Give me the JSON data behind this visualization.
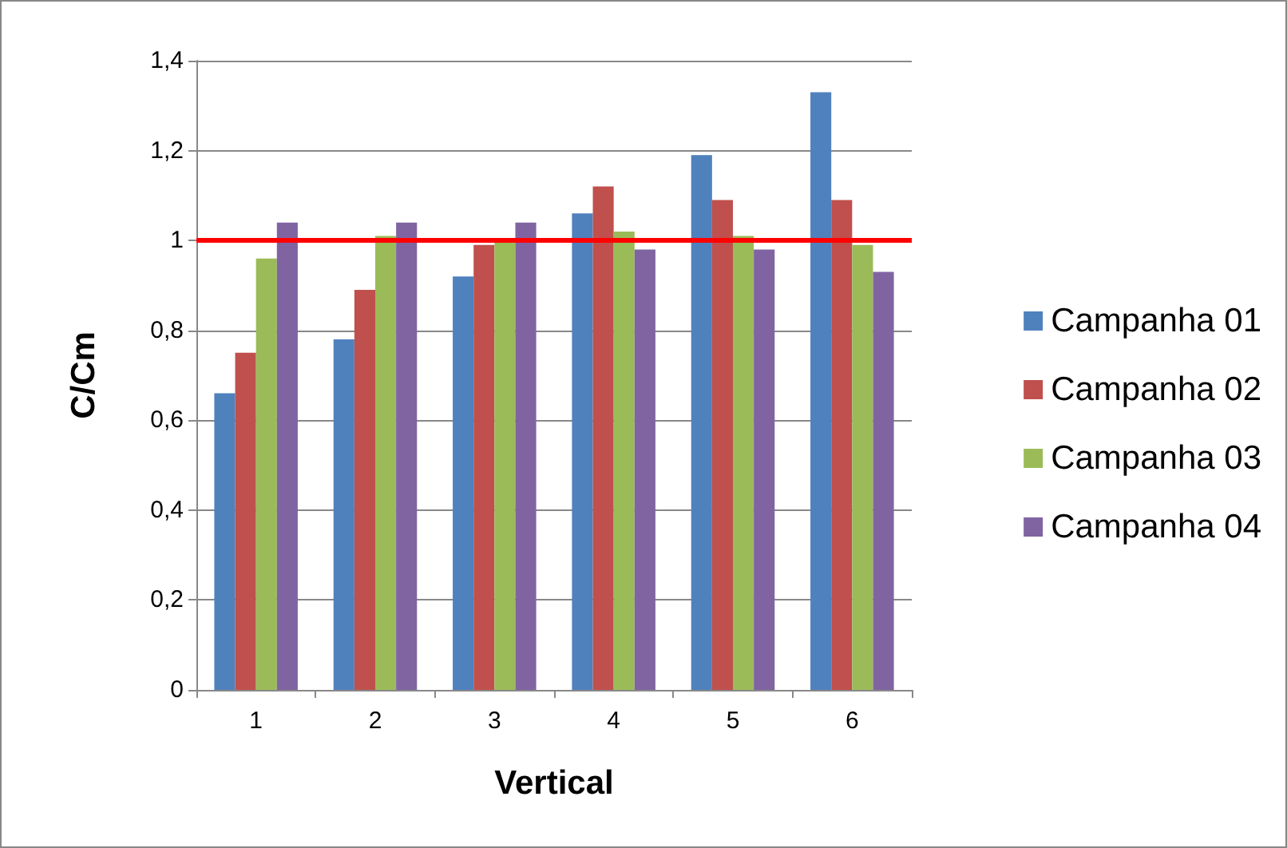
{
  "chart_data": {
    "type": "bar",
    "xlabel": "Vertical",
    "ylabel": "C/Cm",
    "categories": [
      "1",
      "2",
      "3",
      "4",
      "5",
      "6"
    ],
    "series": [
      {
        "name": "Campanha 01",
        "color": "#4f81bd",
        "values": [
          0.66,
          0.78,
          0.92,
          1.06,
          1.19,
          1.33
        ]
      },
      {
        "name": "Campanha 02",
        "color": "#c0504d",
        "values": [
          0.75,
          0.89,
          0.99,
          1.12,
          1.09,
          1.09
        ]
      },
      {
        "name": "Campanha 03",
        "color": "#9bbb59",
        "values": [
          0.96,
          1.01,
          1.0,
          1.02,
          1.01,
          0.99
        ]
      },
      {
        "name": "Campanha 04",
        "color": "#8064a2",
        "values": [
          1.04,
          1.04,
          1.04,
          0.98,
          0.98,
          0.93
        ]
      }
    ],
    "ylim": [
      0,
      1.4
    ],
    "yticks": [
      {
        "value": 0,
        "label": "0"
      },
      {
        "value": 0.2,
        "label": "0,2"
      },
      {
        "value": 0.4,
        "label": "0,4"
      },
      {
        "value": 0.6,
        "label": "0,6"
      },
      {
        "value": 0.8,
        "label": "0,8"
      },
      {
        "value": 1,
        "label": "1"
      },
      {
        "value": 1.2,
        "label": "1,2"
      },
      {
        "value": 1.4,
        "label": "1,4"
      }
    ],
    "grid": "y",
    "legend": "right",
    "ref_lines": [
      {
        "axis": "y",
        "value": 1,
        "color": "#ff0000",
        "line_style": "solid"
      }
    ]
  }
}
